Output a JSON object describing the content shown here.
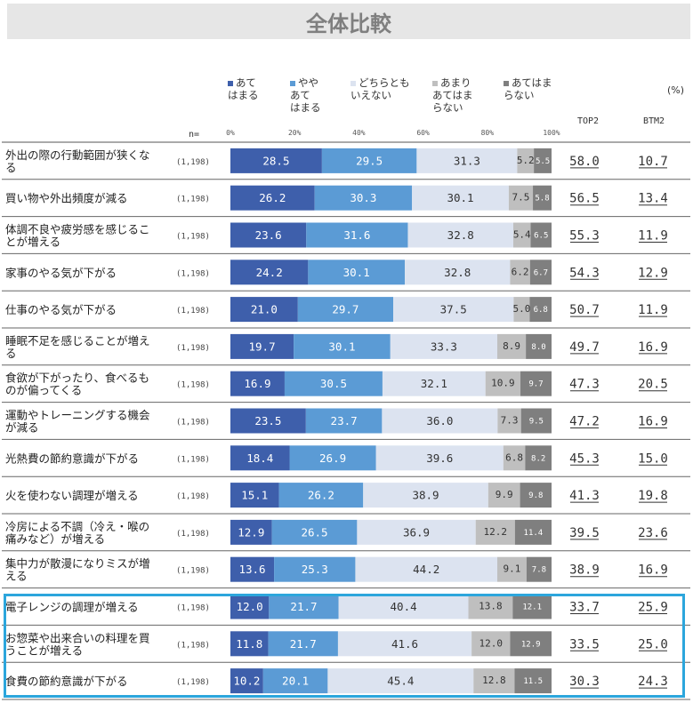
{
  "title": "全体比較",
  "unit": "(%)",
  "n_label": "n=",
  "top2_header": "TOP2",
  "btm2_header": "BTM2",
  "colors": [
    "#3e5fab",
    "#5b9bd5",
    "#dce3f0",
    "#bfbfbf",
    "#7f7f7f"
  ],
  "legend": [
    "あて\nはまる",
    "やや\nあて\nはまる",
    "どちらとも\nいえない",
    "あまり\nあてはま\nらない",
    "あてはま\nらない"
  ],
  "chart_data": {
    "type": "bar",
    "orientation": "horizontal-stacked-100",
    "xlim": [
      0,
      100
    ],
    "x_ticks": [
      "0%",
      "20%",
      "40%",
      "60%",
      "80%",
      "100%"
    ],
    "series_names": [
      "あてはまる",
      "ややあてはまる",
      "どちらともいえない",
      "あまりあてはまらない",
      "あてはまらない"
    ],
    "rows": [
      {
        "label": "外出の際の行動範囲が狭くなる",
        "n": "(1,198)",
        "values": [
          "28.5",
          "29.5",
          "31.3",
          "5.2",
          "5.5"
        ],
        "top2": "58.0",
        "btm2": "10.7"
      },
      {
        "label": "買い物や外出頻度が減る",
        "n": "(1,198)",
        "values": [
          "26.2",
          "30.3",
          "30.1",
          "7.5",
          "5.8"
        ],
        "top2": "56.5",
        "btm2": "13.4"
      },
      {
        "label": "体調不良や疲労感を感じることが増える",
        "n": "(1,198)",
        "values": [
          "23.6",
          "31.6",
          "32.8",
          "5.4",
          "6.5"
        ],
        "top2": "55.3",
        "btm2": "11.9"
      },
      {
        "label": "家事のやる気が下がる",
        "n": "(1,198)",
        "values": [
          "24.2",
          "30.1",
          "32.8",
          "6.2",
          "6.7"
        ],
        "top2": "54.3",
        "btm2": "12.9"
      },
      {
        "label": "仕事のやる気が下がる",
        "n": "(1,198)",
        "values": [
          "21.0",
          "29.7",
          "37.5",
          "5.0",
          "6.8"
        ],
        "top2": "50.7",
        "btm2": "11.9"
      },
      {
        "label": "睡眠不足を感じることが増える",
        "n": "(1,198)",
        "values": [
          "19.7",
          "30.1",
          "33.3",
          "8.9",
          "8.0"
        ],
        "top2": "49.7",
        "btm2": "16.9"
      },
      {
        "label": "食欲が下がったり、食べるものが偏ってくる",
        "n": "(1,198)",
        "values": [
          "16.9",
          "30.5",
          "32.1",
          "10.9",
          "9.7"
        ],
        "top2": "47.3",
        "btm2": "20.5"
      },
      {
        "label": "運動やトレーニングする機会が減る",
        "n": "(1,198)",
        "values": [
          "23.5",
          "23.7",
          "36.0",
          "7.3",
          "9.5"
        ],
        "top2": "47.2",
        "btm2": "16.9"
      },
      {
        "label": "光熱費の節約意識が下がる",
        "n": "(1,198)",
        "values": [
          "18.4",
          "26.9",
          "39.6",
          "6.8",
          "8.2"
        ],
        "top2": "45.3",
        "btm2": "15.0"
      },
      {
        "label": "火を使わない調理が増える",
        "n": "(1,198)",
        "values": [
          "15.1",
          "26.2",
          "38.9",
          "9.9",
          "9.8"
        ],
        "top2": "41.3",
        "btm2": "19.8"
      },
      {
        "label": "冷房による不調（冷え・喉の痛みなど）が増える",
        "n": "(1,198)",
        "values": [
          "12.9",
          "26.5",
          "36.9",
          "12.2",
          "11.4"
        ],
        "top2": "39.5",
        "btm2": "23.6"
      },
      {
        "label": "集中力が散漫になりミスが増える",
        "n": "(1,198)",
        "values": [
          "13.6",
          "25.3",
          "44.2",
          "9.1",
          "7.8"
        ],
        "top2": "38.9",
        "btm2": "16.9"
      },
      {
        "label": "電子レンジの調理が増える",
        "n": "(1,198)",
        "values": [
          "12.0",
          "21.7",
          "40.4",
          "13.8",
          "12.1"
        ],
        "top2": "33.7",
        "btm2": "25.9"
      },
      {
        "label": "お惣菜や出来合いの料理を買うことが増える",
        "n": "(1,198)",
        "values": [
          "11.8",
          "21.7",
          "41.6",
          "12.0",
          "12.9"
        ],
        "top2": "33.5",
        "btm2": "25.0"
      },
      {
        "label": "食費の節約意識が下がる",
        "n": "(1,198)",
        "values": [
          "10.2",
          "20.1",
          "45.4",
          "12.8",
          "11.5"
        ],
        "top2": "30.3",
        "btm2": "24.3"
      }
    ],
    "highlighted_rows": [
      12,
      13,
      14
    ]
  }
}
